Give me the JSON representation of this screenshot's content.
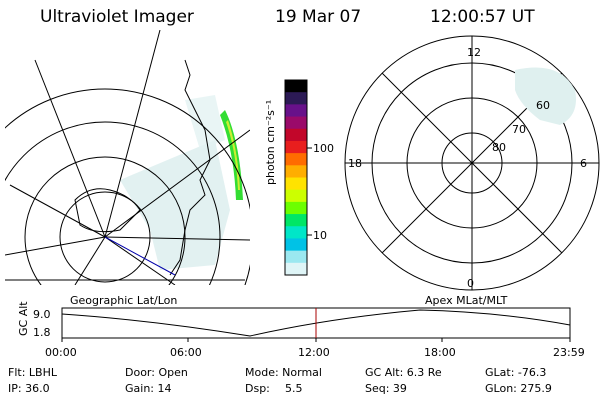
{
  "header": {
    "instrument": "Ultraviolet Imager",
    "date": "19 Mar 07",
    "time": "12:00:57 UT"
  },
  "colorbar": {
    "label": "photon cm⁻²s⁻¹",
    "ticks": [
      "100",
      "10"
    ],
    "colors": [
      "#000000",
      "#2c1a55",
      "#68118a",
      "#9a0a6a",
      "#c2062a",
      "#e81e1e",
      "#ff6c00",
      "#ffae00",
      "#ffe300",
      "#ccff00",
      "#6cff00",
      "#00e666",
      "#00e6c8",
      "#00c2e6",
      "#9be8f0",
      "#dff5f7"
    ]
  },
  "maps": {
    "left_label": "Geographic Lat/Lon",
    "right_label": "Apex MLat/MLT",
    "polar_ticks": {
      "top": "12",
      "left": "18",
      "right": "6",
      "bottom": "0"
    },
    "lat_labels": [
      "60",
      "70",
      "80"
    ]
  },
  "altitude_panel": {
    "ylabel": "GC Alt",
    "y_ticks": [
      "9.0",
      "1.8"
    ],
    "x_ticks": [
      "00:00",
      "06:00",
      "12:00",
      "18:00",
      "23:59"
    ]
  },
  "footer": {
    "flt": "Flt: LBHL",
    "ip": "IP: 36.0",
    "door": "Door: Open",
    "gain": "Gain: 14",
    "mode": "Mode: Normal",
    "dsp_label": "Dsp:",
    "dsp_value": "5.5",
    "gc_alt": "GC Alt: 6.3 Re",
    "seq": "Seq: 39",
    "glat": "GLat: -76.3",
    "glon": "GLon: 275.9"
  }
}
